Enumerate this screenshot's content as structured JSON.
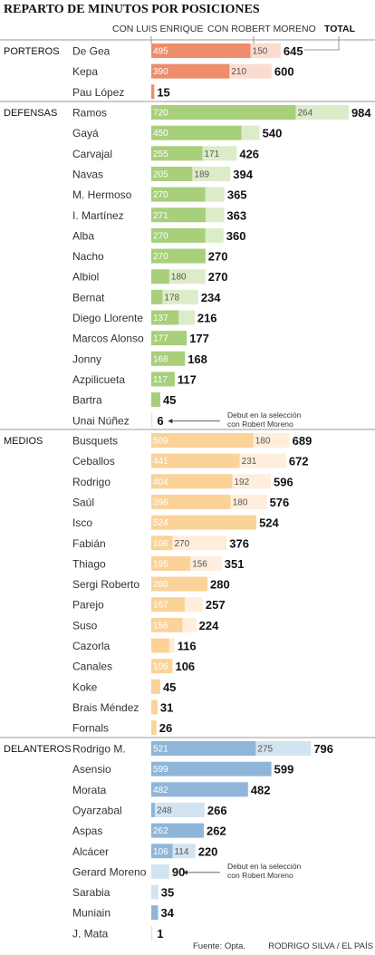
{
  "chart_data": {
    "type": "bar",
    "stacked": true,
    "orientation": "horizontal",
    "title": "REPARTO DE MINUTOS POR POSICIONES",
    "legend": {
      "luis_enrique": "CON LUIS ENRIQUE",
      "robert_moreno": "CON ROBERT MORENO",
      "total": "TOTAL"
    },
    "groups": [
      {
        "name": "PORTEROS",
        "colors": {
          "luis_enrique": "#ee8c6b",
          "robert_moreno": "#fbdcd0"
        },
        "players": [
          {
            "name": "De Gea",
            "luis_enrique": 495,
            "robert_moreno": 150,
            "total": 645
          },
          {
            "name": "Kepa",
            "luis_enrique": 390,
            "robert_moreno": 210,
            "total": 600
          },
          {
            "name": "Pau López",
            "luis_enrique": 15,
            "robert_moreno": 0,
            "total": 15
          }
        ]
      },
      {
        "name": "DEFENSAS",
        "colors": {
          "luis_enrique": "#a8cf7a",
          "robert_moreno": "#dcecc8"
        },
        "players": [
          {
            "name": "Ramos",
            "luis_enrique": 720,
            "robert_moreno": 264,
            "total": 984
          },
          {
            "name": "Gayá",
            "luis_enrique": 450,
            "robert_moreno": 90,
            "total": 540
          },
          {
            "name": "Carvajal",
            "luis_enrique": 255,
            "robert_moreno": 171,
            "total": 426
          },
          {
            "name": "Navas",
            "luis_enrique": 205,
            "robert_moreno": 189,
            "total": 394
          },
          {
            "name": "M. Hermoso",
            "luis_enrique": 270,
            "robert_moreno": 95,
            "total": 365
          },
          {
            "name": "I. Martínez",
            "luis_enrique": 271,
            "robert_moreno": 92,
            "total": 363
          },
          {
            "name": "Alba",
            "luis_enrique": 270,
            "robert_moreno": 90,
            "total": 360
          },
          {
            "name": "Nacho",
            "luis_enrique": 270,
            "robert_moreno": 0,
            "total": 270
          },
          {
            "name": "Albiol",
            "luis_enrique": 90,
            "robert_moreno": 180,
            "total": 270
          },
          {
            "name": "Bernat",
            "luis_enrique": 56,
            "robert_moreno": 178,
            "total": 234
          },
          {
            "name": "Diego Llorente",
            "luis_enrique": 137,
            "robert_moreno": 79,
            "total": 216
          },
          {
            "name": "Marcos Alonso",
            "luis_enrique": 177,
            "robert_moreno": 0,
            "total": 177
          },
          {
            "name": "Jonny",
            "luis_enrique": 168,
            "robert_moreno": 0,
            "total": 168
          },
          {
            "name": "Azpilicueta",
            "luis_enrique": 117,
            "robert_moreno": 0,
            "total": 117
          },
          {
            "name": "Bartra",
            "luis_enrique": 45,
            "robert_moreno": 0,
            "total": 45
          },
          {
            "name": "Unai Núñez",
            "luis_enrique": 0,
            "robert_moreno": 6,
            "total": 6,
            "note": "Debut en la selección con Robert Moreno"
          }
        ]
      },
      {
        "name": "MEDIOS",
        "colors": {
          "luis_enrique": "#fbd399",
          "robert_moreno": "#feeedb"
        },
        "players": [
          {
            "name": "Busquets",
            "luis_enrique": 509,
            "robert_moreno": 180,
            "total": 689
          },
          {
            "name": "Ceballos",
            "luis_enrique": 441,
            "robert_moreno": 231,
            "total": 672
          },
          {
            "name": "Rodrigo",
            "luis_enrique": 404,
            "robert_moreno": 192,
            "total": 596
          },
          {
            "name": "Saúl",
            "luis_enrique": 396,
            "robert_moreno": 180,
            "total": 576
          },
          {
            "name": "Isco",
            "luis_enrique": 524,
            "robert_moreno": 0,
            "total": 524
          },
          {
            "name": "Fabián",
            "luis_enrique": 106,
            "robert_moreno": 270,
            "total": 376
          },
          {
            "name": "Thiago",
            "luis_enrique": 195,
            "robert_moreno": 156,
            "total": 351
          },
          {
            "name": "Sergi Roberto",
            "luis_enrique": 280,
            "robert_moreno": 0,
            "total": 280
          },
          {
            "name": "Parejo",
            "luis_enrique": 167,
            "robert_moreno": 90,
            "total": 257
          },
          {
            "name": "Suso",
            "luis_enrique": 156,
            "robert_moreno": 68,
            "total": 224
          },
          {
            "name": "Cazorla",
            "luis_enrique": 90,
            "robert_moreno": 26,
            "total": 116
          },
          {
            "name": "Canales",
            "luis_enrique": 106,
            "robert_moreno": 0,
            "total": 106
          },
          {
            "name": "Koke",
            "luis_enrique": 45,
            "robert_moreno": 0,
            "total": 45
          },
          {
            "name": "Brais Méndez",
            "luis_enrique": 31,
            "robert_moreno": 0,
            "total": 31
          },
          {
            "name": "Fornals",
            "luis_enrique": 26,
            "robert_moreno": 0,
            "total": 26
          }
        ]
      },
      {
        "name": "DELANTEROS",
        "colors": {
          "luis_enrique": "#8fb6d8",
          "robert_moreno": "#d3e4f1"
        },
        "players": [
          {
            "name": "Rodrigo M.",
            "luis_enrique": 521,
            "robert_moreno": 275,
            "total": 796
          },
          {
            "name": "Asensio",
            "luis_enrique": 599,
            "robert_moreno": 0,
            "total": 599
          },
          {
            "name": "Morata",
            "luis_enrique": 482,
            "robert_moreno": 0,
            "total": 482
          },
          {
            "name": "Oyarzabal",
            "luis_enrique": 18,
            "robert_moreno": 248,
            "total": 266
          },
          {
            "name": "Aspas",
            "luis_enrique": 262,
            "robert_moreno": 0,
            "total": 262
          },
          {
            "name": "Alcácer",
            "luis_enrique": 106,
            "robert_moreno": 114,
            "total": 220
          },
          {
            "name": "Gerard Moreno",
            "luis_enrique": 0,
            "robert_moreno": 90,
            "total": 90,
            "note": "Debut en la selección con Robert Moreno"
          },
          {
            "name": "Sarabia",
            "luis_enrique": 0,
            "robert_moreno": 35,
            "total": 35
          },
          {
            "name": "Muniain",
            "luis_enrique": 34,
            "robert_moreno": 0,
            "total": 34
          },
          {
            "name": "J. Mata",
            "luis_enrique": 0,
            "robert_moreno": 1,
            "total": 1
          }
        ]
      }
    ],
    "footer": {
      "source": "Fuente: Opta.",
      "credit": "RODRIGO SILVA / EL PAÍS"
    }
  }
}
